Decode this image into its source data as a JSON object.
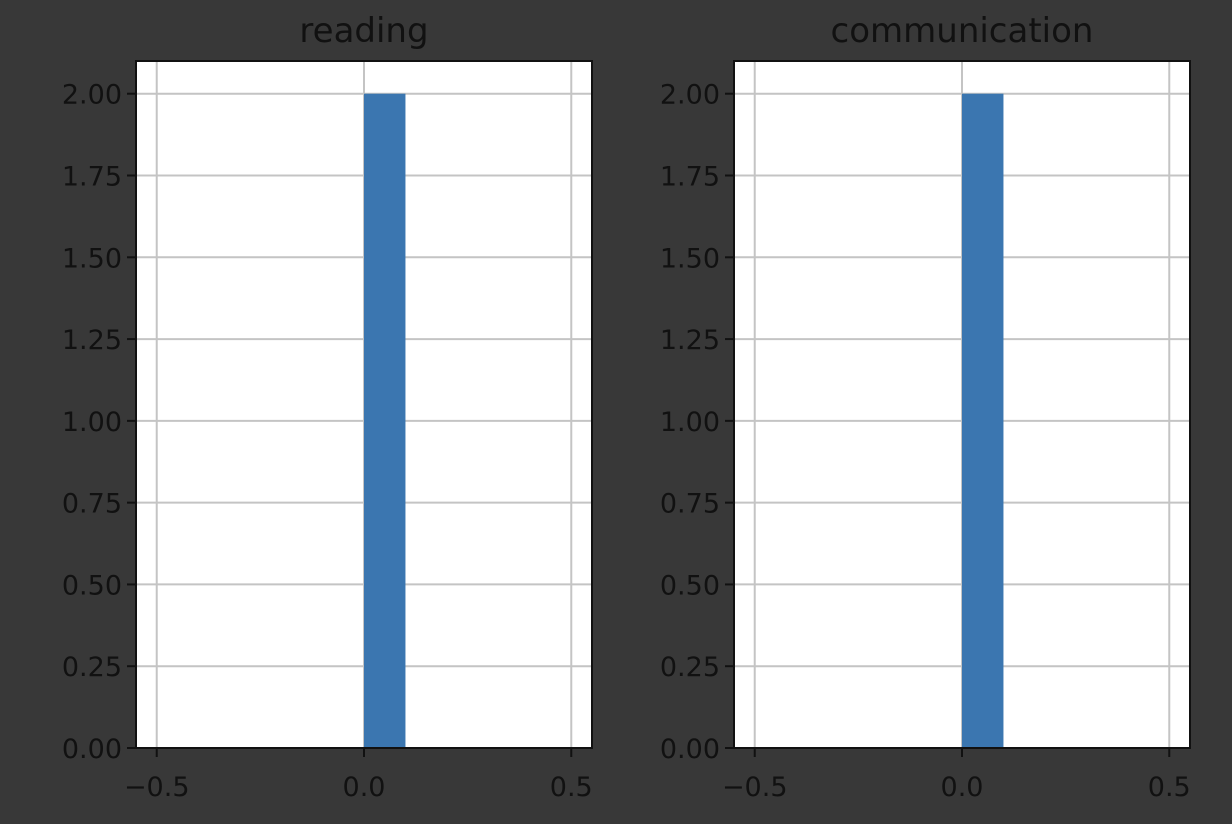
{
  "chart_data": [
    {
      "type": "bar",
      "title": "reading",
      "xlabel": "",
      "ylabel": "",
      "xlim": [
        -0.55,
        0.55
      ],
      "ylim": [
        0,
        2.1
      ],
      "xticks": [
        -0.5,
        0.0,
        0.5
      ],
      "xtick_labels": [
        "−0.5",
        "0.0",
        "0.5"
      ],
      "yticks": [
        0,
        0.25,
        0.5,
        0.75,
        1.0,
        1.25,
        1.5,
        1.75,
        2.0
      ],
      "ytick_labels": [
        "0.00",
        "0.25",
        "0.50",
        "0.75",
        "1.00",
        "1.25",
        "1.50",
        "1.75",
        "2.00"
      ],
      "grid": true,
      "bins": [
        {
          "x0": 0.0,
          "x1": 0.1,
          "value": 2
        }
      ]
    },
    {
      "type": "bar",
      "title": "communication",
      "xlabel": "",
      "ylabel": "",
      "xlim": [
        -0.55,
        0.55
      ],
      "ylim": [
        0,
        2.1
      ],
      "xticks": [
        -0.5,
        0.0,
        0.5
      ],
      "xtick_labels": [
        "−0.5",
        "0.0",
        "0.5"
      ],
      "yticks": [
        0,
        0.25,
        0.5,
        0.75,
        1.0,
        1.25,
        1.5,
        1.75,
        2.0
      ],
      "ytick_labels": [
        "0.00",
        "0.25",
        "0.50",
        "0.75",
        "1.00",
        "1.25",
        "1.50",
        "1.75",
        "2.00"
      ],
      "grid": true,
      "bins": [
        {
          "x0": 0.0,
          "x1": 0.1,
          "value": 2
        }
      ]
    }
  ],
  "colors": {
    "background": "#383838",
    "plot_area": "#ffffff",
    "bar": "#3b76b0",
    "grid": "#c4c4c4",
    "axis": "#111111",
    "text": "#111111"
  }
}
